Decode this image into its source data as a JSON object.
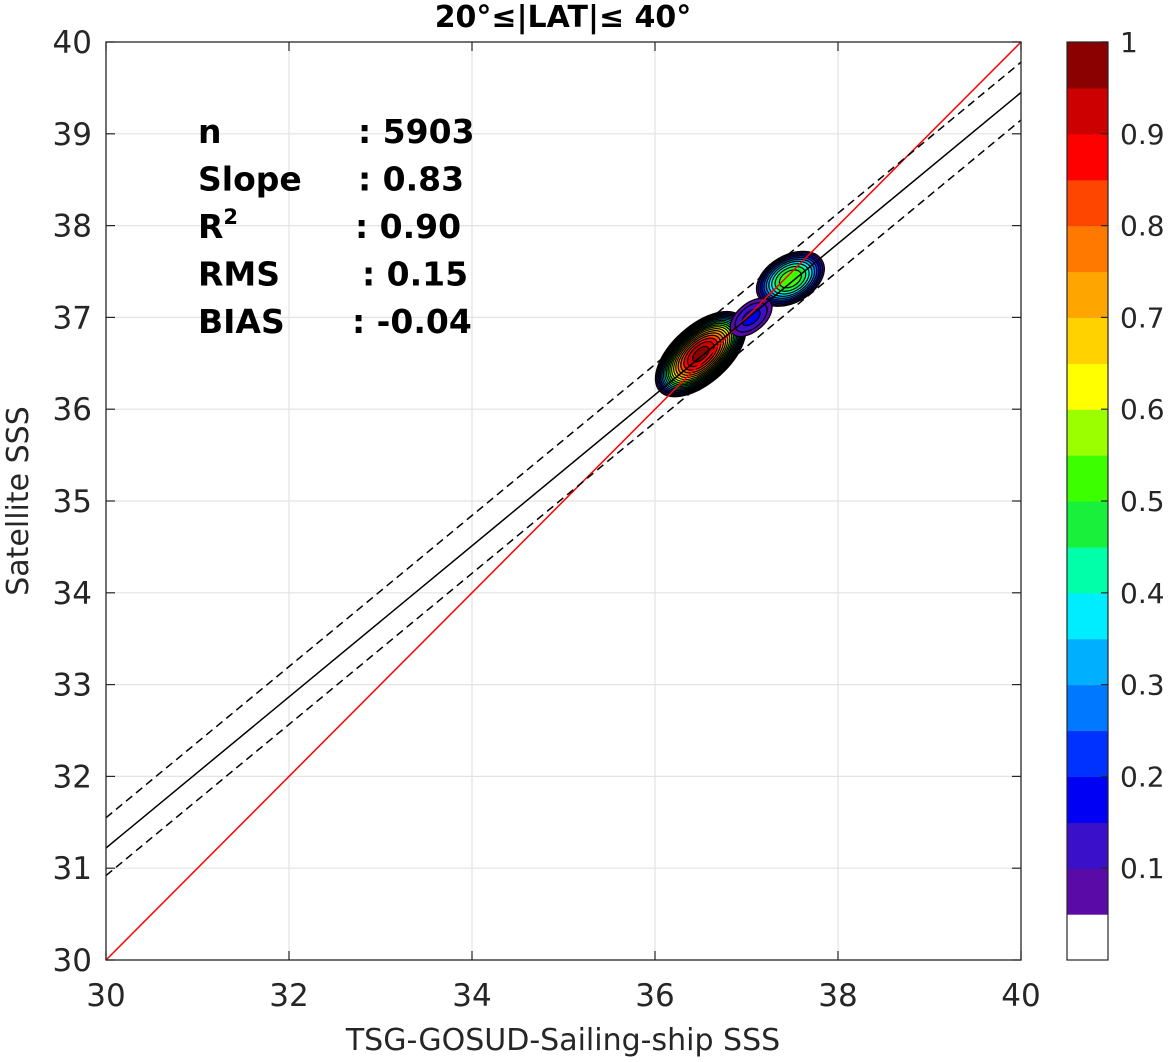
{
  "chart_data": {
    "type": "scatter",
    "title": "20°≤|LAT|≤ 40°",
    "xlabel": "TSG-GOSUD-Sailing-ship SSS",
    "ylabel": "Satellite SSS",
    "xlim": [
      30,
      40
    ],
    "ylim": [
      30,
      40
    ],
    "xticks": [
      30,
      32,
      34,
      36,
      38,
      40
    ],
    "yticks": [
      30,
      31,
      32,
      33,
      34,
      35,
      36,
      37,
      38,
      39,
      40
    ],
    "grid": true,
    "stats": [
      {
        "name": "n",
        "sep": ":",
        "value": "5903"
      },
      {
        "name": "Slope",
        "sep": ":",
        "value": "0.83"
      },
      {
        "name": "R",
        "sup": "2",
        "sep": ":",
        "value": "0.90"
      },
      {
        "name": "RMS",
        "sep": ":",
        "value": "0.15"
      },
      {
        "name": "BIAS",
        "sep": ":",
        "value": "-0.04"
      }
    ],
    "lines": [
      {
        "kind": "one-to-one",
        "color": "#ff0000",
        "style": "solid",
        "points": [
          [
            30,
            30
          ],
          [
            40,
            40
          ]
        ]
      },
      {
        "kind": "regression",
        "color": "#000000",
        "style": "solid",
        "points": [
          [
            30,
            31.22
          ],
          [
            40,
            39.45
          ]
        ]
      },
      {
        "kind": "regression-plus",
        "color": "#000000",
        "style": "dashed",
        "points": [
          [
            30,
            31.55
          ],
          [
            40,
            39.78
          ]
        ]
      },
      {
        "kind": "regression-minus",
        "color": "#000000",
        "style": "dashed",
        "points": [
          [
            30,
            30.92
          ],
          [
            40,
            39.15
          ]
        ]
      }
    ],
    "density_clusters": [
      {
        "cx": 36.5,
        "cy": 36.6,
        "rx": 0.62,
        "ry": 0.32,
        "angle": 42,
        "peak": 1.0
      },
      {
        "cx": 37.48,
        "cy": 37.42,
        "rx": 0.42,
        "ry": 0.27,
        "angle": 30,
        "peak": 0.55
      },
      {
        "cx": 37.05,
        "cy": 37.0,
        "rx": 0.32,
        "ry": 0.18,
        "angle": 40,
        "peak": 0.15
      }
    ],
    "colorbar": {
      "ticks": [
        "0.1",
        "0.2",
        "0.3",
        "0.4",
        "0.5",
        "0.6",
        "0.7",
        "0.8",
        "0.9",
        "1"
      ],
      "tick_values": [
        0.1,
        0.2,
        0.3,
        0.4,
        0.5,
        0.6,
        0.7,
        0.8,
        0.9,
        1.0
      ],
      "min": 0,
      "max": 1,
      "colors": [
        "#ffffff",
        "#5a0aa6",
        "#3a10c8",
        "#0000f5",
        "#0032ff",
        "#0078ff",
        "#00b0ff",
        "#00ecff",
        "#00ffa8",
        "#18f03c",
        "#3cff00",
        "#9cff00",
        "#ffff00",
        "#ffd200",
        "#ffa500",
        "#ff7800",
        "#ff4600",
        "#ff0000",
        "#cc0000",
        "#8b0000"
      ]
    }
  }
}
